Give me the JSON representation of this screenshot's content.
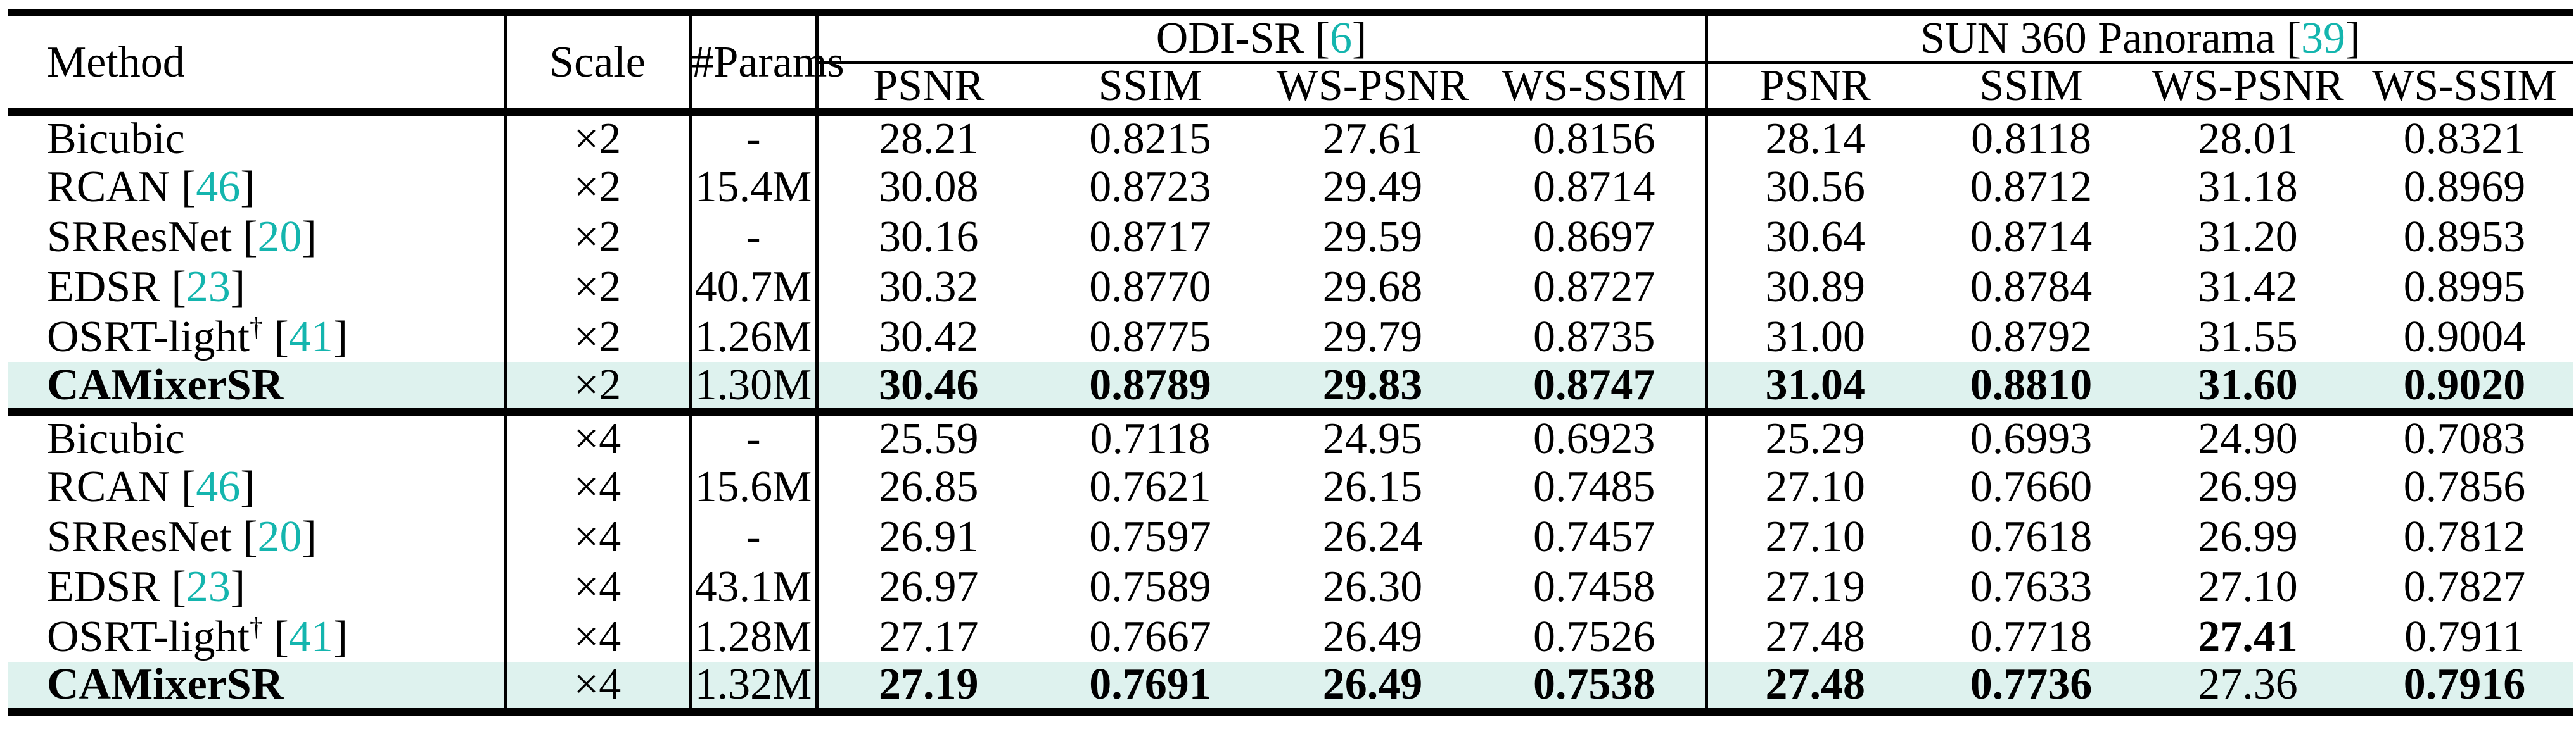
{
  "punct": {
    "cite_open": " [",
    "cite_close": "]",
    "dagger": "†"
  },
  "colors": {
    "citation": "#14b5ae",
    "highlight_row_bg": "#def2ee",
    "rule": "#000000"
  },
  "header": {
    "method": "Method",
    "scale": "Scale",
    "params": "#Params",
    "groups": [
      {
        "name": "ODI-SR",
        "cite": "6",
        "metrics": [
          "PSNR",
          "SSIM",
          "WS-PSNR",
          "WS-SSIM"
        ]
      },
      {
        "name": "SUN 360 Panorama",
        "cite": "39",
        "metrics": [
          "PSNR",
          "SSIM",
          "WS-PSNR",
          "WS-SSIM"
        ]
      }
    ]
  },
  "rows": [
    {
      "method": "Bicubic",
      "cite": null,
      "dagger": false,
      "bold_method": false,
      "highlight": false,
      "scale": "×2",
      "params": "-",
      "values": [
        {
          "v": "28.21",
          "bold": false
        },
        {
          "v": "0.8215",
          "bold": false
        },
        {
          "v": "27.61",
          "bold": false
        },
        {
          "v": "0.8156",
          "bold": false
        },
        {
          "v": "28.14",
          "bold": false
        },
        {
          "v": "0.8118",
          "bold": false
        },
        {
          "v": "28.01",
          "bold": false
        },
        {
          "v": "0.8321",
          "bold": false
        }
      ]
    },
    {
      "method": "RCAN",
      "cite": "46",
      "dagger": false,
      "bold_method": false,
      "highlight": false,
      "scale": "×2",
      "params": "15.4M",
      "values": [
        {
          "v": "30.08",
          "bold": false
        },
        {
          "v": "0.8723",
          "bold": false
        },
        {
          "v": "29.49",
          "bold": false
        },
        {
          "v": "0.8714",
          "bold": false
        },
        {
          "v": "30.56",
          "bold": false
        },
        {
          "v": "0.8712",
          "bold": false
        },
        {
          "v": "31.18",
          "bold": false
        },
        {
          "v": "0.8969",
          "bold": false
        }
      ]
    },
    {
      "method": "SRResNet",
      "cite": "20",
      "dagger": false,
      "bold_method": false,
      "highlight": false,
      "scale": "×2",
      "params": "-",
      "values": [
        {
          "v": "30.16",
          "bold": false
        },
        {
          "v": "0.8717",
          "bold": false
        },
        {
          "v": "29.59",
          "bold": false
        },
        {
          "v": "0.8697",
          "bold": false
        },
        {
          "v": "30.64",
          "bold": false
        },
        {
          "v": "0.8714",
          "bold": false
        },
        {
          "v": "31.20",
          "bold": false
        },
        {
          "v": "0.8953",
          "bold": false
        }
      ]
    },
    {
      "method": "EDSR",
      "cite": "23",
      "dagger": false,
      "bold_method": false,
      "highlight": false,
      "scale": "×2",
      "params": "40.7M",
      "values": [
        {
          "v": "30.32",
          "bold": false
        },
        {
          "v": "0.8770",
          "bold": false
        },
        {
          "v": "29.68",
          "bold": false
        },
        {
          "v": "0.8727",
          "bold": false
        },
        {
          "v": "30.89",
          "bold": false
        },
        {
          "v": "0.8784",
          "bold": false
        },
        {
          "v": "31.42",
          "bold": false
        },
        {
          "v": "0.8995",
          "bold": false
        }
      ]
    },
    {
      "method": "OSRT-light",
      "cite": "41",
      "dagger": true,
      "bold_method": false,
      "highlight": false,
      "scale": "×2",
      "params": "1.26M",
      "values": [
        {
          "v": "30.42",
          "bold": false
        },
        {
          "v": "0.8775",
          "bold": false
        },
        {
          "v": "29.79",
          "bold": false
        },
        {
          "v": "0.8735",
          "bold": false
        },
        {
          "v": "31.00",
          "bold": false
        },
        {
          "v": "0.8792",
          "bold": false
        },
        {
          "v": "31.55",
          "bold": false
        },
        {
          "v": "0.9004",
          "bold": false
        }
      ]
    },
    {
      "method": "CAMixerSR",
      "cite": null,
      "dagger": false,
      "bold_method": true,
      "highlight": true,
      "scale": "×2",
      "params": "1.30M",
      "values": [
        {
          "v": "30.46",
          "bold": true
        },
        {
          "v": "0.8789",
          "bold": true
        },
        {
          "v": "29.83",
          "bold": true
        },
        {
          "v": "0.8747",
          "bold": true
        },
        {
          "v": "31.04",
          "bold": true
        },
        {
          "v": "0.8810",
          "bold": true
        },
        {
          "v": "31.60",
          "bold": true
        },
        {
          "v": "0.9020",
          "bold": true
        }
      ]
    },
    {
      "method": "Bicubic",
      "cite": null,
      "dagger": false,
      "bold_method": false,
      "highlight": false,
      "scale": "×4",
      "params": "-",
      "values": [
        {
          "v": "25.59",
          "bold": false
        },
        {
          "v": "0.7118",
          "bold": false
        },
        {
          "v": "24.95",
          "bold": false
        },
        {
          "v": "0.6923",
          "bold": false
        },
        {
          "v": "25.29",
          "bold": false
        },
        {
          "v": "0.6993",
          "bold": false
        },
        {
          "v": "24.90",
          "bold": false
        },
        {
          "v": "0.7083",
          "bold": false
        }
      ]
    },
    {
      "method": "RCAN",
      "cite": "46",
      "dagger": false,
      "bold_method": false,
      "highlight": false,
      "scale": "×4",
      "params": "15.6M",
      "values": [
        {
          "v": "26.85",
          "bold": false
        },
        {
          "v": "0.7621",
          "bold": false
        },
        {
          "v": "26.15",
          "bold": false
        },
        {
          "v": "0.7485",
          "bold": false
        },
        {
          "v": "27.10",
          "bold": false
        },
        {
          "v": "0.7660",
          "bold": false
        },
        {
          "v": "26.99",
          "bold": false
        },
        {
          "v": "0.7856",
          "bold": false
        }
      ]
    },
    {
      "method": "SRResNet",
      "cite": "20",
      "dagger": false,
      "bold_method": false,
      "highlight": false,
      "scale": "×4",
      "params": "-",
      "values": [
        {
          "v": "26.91",
          "bold": false
        },
        {
          "v": "0.7597",
          "bold": false
        },
        {
          "v": "26.24",
          "bold": false
        },
        {
          "v": "0.7457",
          "bold": false
        },
        {
          "v": "27.10",
          "bold": false
        },
        {
          "v": "0.7618",
          "bold": false
        },
        {
          "v": "26.99",
          "bold": false
        },
        {
          "v": "0.7812",
          "bold": false
        }
      ]
    },
    {
      "method": "EDSR",
      "cite": "23",
      "dagger": false,
      "bold_method": false,
      "highlight": false,
      "scale": "×4",
      "params": "43.1M",
      "values": [
        {
          "v": "26.97",
          "bold": false
        },
        {
          "v": "0.7589",
          "bold": false
        },
        {
          "v": "26.30",
          "bold": false
        },
        {
          "v": "0.7458",
          "bold": false
        },
        {
          "v": "27.19",
          "bold": false
        },
        {
          "v": "0.7633",
          "bold": false
        },
        {
          "v": "27.10",
          "bold": false
        },
        {
          "v": "0.7827",
          "bold": false
        }
      ]
    },
    {
      "method": "OSRT-light",
      "cite": "41",
      "dagger": true,
      "bold_method": false,
      "highlight": false,
      "scale": "×4",
      "params": "1.28M",
      "values": [
        {
          "v": "27.17",
          "bold": false
        },
        {
          "v": "0.7667",
          "bold": false
        },
        {
          "v": "26.49",
          "bold": false
        },
        {
          "v": "0.7526",
          "bold": false
        },
        {
          "v": "27.48",
          "bold": false
        },
        {
          "v": "0.7718",
          "bold": false
        },
        {
          "v": "27.41",
          "bold": true
        },
        {
          "v": "0.7911",
          "bold": false
        }
      ]
    },
    {
      "method": "CAMixerSR",
      "cite": null,
      "dagger": false,
      "bold_method": true,
      "highlight": true,
      "scale": "×4",
      "params": "1.32M",
      "values": [
        {
          "v": "27.19",
          "bold": true
        },
        {
          "v": "0.7691",
          "bold": true
        },
        {
          "v": "26.49",
          "bold": true
        },
        {
          "v": "0.7538",
          "bold": true
        },
        {
          "v": "27.48",
          "bold": true
        },
        {
          "v": "0.7736",
          "bold": true
        },
        {
          "v": "27.36",
          "bold": false
        },
        {
          "v": "0.7916",
          "bold": true
        }
      ]
    }
  ]
}
